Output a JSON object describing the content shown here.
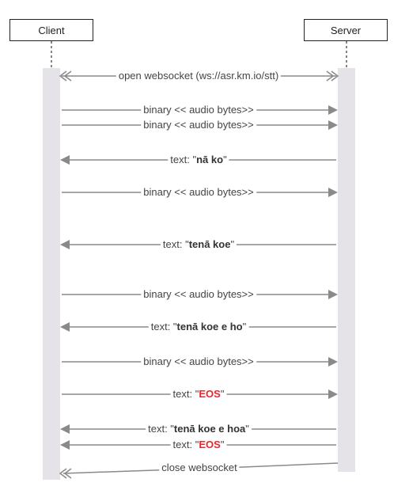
{
  "participants": {
    "client": "Client",
    "server": "Server"
  },
  "messages": [
    {
      "dir": "both",
      "prefix": "open websocket (ws://asr.km.io/stt)",
      "bold": "",
      "red": "",
      "suffix": ""
    },
    {
      "dir": "right",
      "prefix": "binary << audio bytes>>",
      "bold": "",
      "red": "",
      "suffix": ""
    },
    {
      "dir": "right",
      "prefix": "binary << audio bytes>>",
      "bold": "",
      "red": "",
      "suffix": ""
    },
    {
      "dir": "left",
      "prefix": "text: \"",
      "bold": "nā ko",
      "red": "",
      "suffix": "\""
    },
    {
      "dir": "right",
      "prefix": "binary << audio bytes>>",
      "bold": "",
      "red": "",
      "suffix": ""
    },
    {
      "dir": "left",
      "prefix": "text: \"",
      "bold": "tenā koe",
      "red": "",
      "suffix": "\""
    },
    {
      "dir": "right",
      "prefix": "binary << audio bytes>>",
      "bold": "",
      "red": "",
      "suffix": ""
    },
    {
      "dir": "left",
      "prefix": "text: \"",
      "bold": "tenā koe e ho",
      "red": "",
      "suffix": "\""
    },
    {
      "dir": "right",
      "prefix": "binary << audio bytes>>",
      "bold": "",
      "red": "",
      "suffix": ""
    },
    {
      "dir": "right",
      "prefix": "text: \"",
      "bold": "",
      "red": "EOS",
      "suffix": "\""
    },
    {
      "dir": "left",
      "prefix": "text: \"",
      "bold": "tenā koe e hoa",
      "red": "",
      "suffix": "\""
    },
    {
      "dir": "left",
      "prefix": "text: \"",
      "bold": "",
      "red": "EOS",
      "suffix": "\""
    },
    {
      "dir": "close",
      "prefix": "close websocket",
      "bold": "",
      "red": "",
      "suffix": ""
    }
  ],
  "colors": {
    "arrow": "#8a8a8a",
    "eos": "#e8262b",
    "lifeline": "#e5e3e7"
  }
}
